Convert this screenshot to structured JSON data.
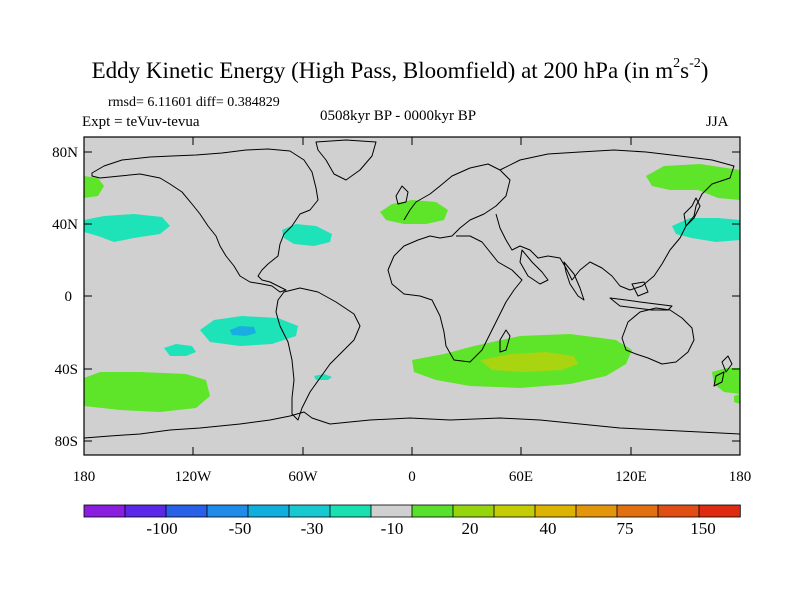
{
  "title": {
    "text": "Eddy Kinetic Energy (High Pass, Bloomfield) at 200 hPa (in m",
    "unit_sup1": "2",
    "unit_mid": "s",
    "unit_sup2": "-2",
    "unit_end": ")"
  },
  "stats": {
    "rmsd_diff": "rmsd= 6.11601 diff= 0.384829",
    "expt": "Expt = teVuv-tevua",
    "period": "0508kyr BP - 0000kyr BP",
    "season": "JJA"
  },
  "axes": {
    "lat_labels": [
      "80N",
      "40N",
      "0",
      "40S",
      "80S"
    ],
    "lon_labels": [
      "180",
      "120W",
      "60W",
      "0",
      "60E",
      "120E",
      "180"
    ]
  },
  "colorbar": {
    "labels": [
      "-100",
      "-50",
      "-30",
      "-10",
      "20",
      "40",
      "75",
      "150"
    ],
    "colors": [
      "#8a1ee0",
      "#5a28e6",
      "#2860e8",
      "#1e8ce8",
      "#10aedc",
      "#16c8d0",
      "#18e0b0",
      "#d0d0d0",
      "#58e02c",
      "#96d40c",
      "#c4cc04",
      "#dcb400",
      "#e4960a",
      "#e27010",
      "#e04e14",
      "#de2a10"
    ]
  },
  "colors": {
    "background": "#d0d0d0",
    "cyan": "#1ee2b8",
    "green": "#5ee428",
    "yellow_green": "#a8d410",
    "blue": "#1aaee0"
  }
}
